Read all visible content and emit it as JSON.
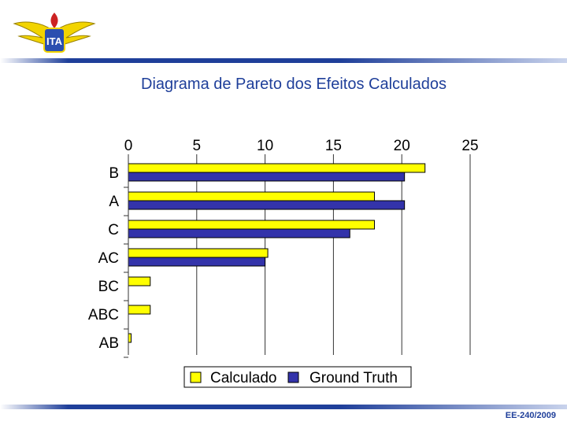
{
  "slide": {
    "title": "Diagrama de Pareto dos Efeitos Calculados",
    "footer": "EE-240/2009"
  },
  "logo": {
    "text": "ITA",
    "icon": "ita-wings-logo"
  },
  "colors": {
    "accent": "#1f3f9a",
    "calculado": "#ffff00",
    "ground_truth": "#3333aa"
  },
  "chart_data": {
    "type": "bar",
    "orientation": "horizontal",
    "categories": [
      "B",
      "A",
      "C",
      "AC",
      "BC",
      "ABC",
      "AB"
    ],
    "series": [
      {
        "name": "Calculado",
        "values": [
          21.7,
          18.0,
          18.0,
          10.2,
          1.6,
          1.6,
          0.2
        ]
      },
      {
        "name": "Ground Truth",
        "values": [
          20.2,
          20.2,
          16.2,
          10.0,
          0,
          0,
          0
        ]
      }
    ],
    "x_ticks": [
      0,
      5,
      10,
      15,
      20,
      25
    ],
    "xlim": [
      0,
      25
    ],
    "tick_position": "top",
    "grid": "vertical",
    "legend_position": "bottom"
  }
}
